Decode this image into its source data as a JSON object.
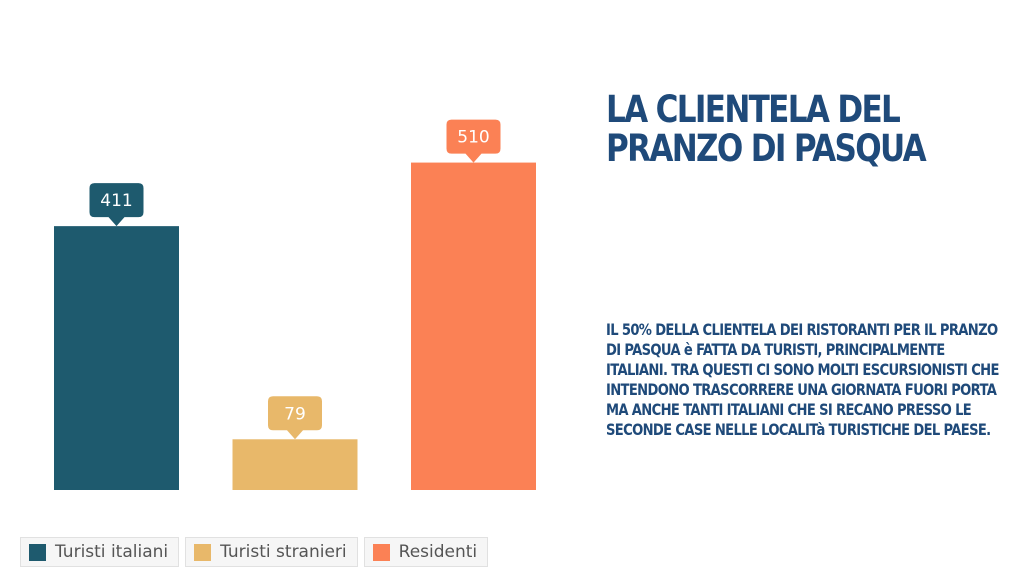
{
  "chart_data": {
    "type": "bar",
    "categories": [
      "Turisti italiani",
      "Turisti stranieri",
      "Residenti"
    ],
    "values": [
      411,
      79,
      510
    ],
    "colors": [
      "#1e5a6e",
      "#e8b86a",
      "#fb8155"
    ],
    "ylim": [
      0,
      600
    ],
    "legend_position": "bottom",
    "grid": false
  },
  "panel": {
    "title": "LA CLIENTELA DEL PRANZO DI PASQUA",
    "description": "IL 50% DELLA CLIENTELA DEI RISTORANTI PER IL PRANZO DI PASQUA è FATTA DA TURISTI, PRINCIPALMENTE ITALIANI. TRA QUESTI CI SONO MOLTI ESCURSIONISTI CHE INTENDONO TRASCORRERE UNA GIORNATA FUORI PORTA MA ANCHE TANTI ITALIANI CHE SI RECANO PRESSO LE SECONDE CASE NELLE LOCALITà TURISTICHE DEL PAESE."
  }
}
